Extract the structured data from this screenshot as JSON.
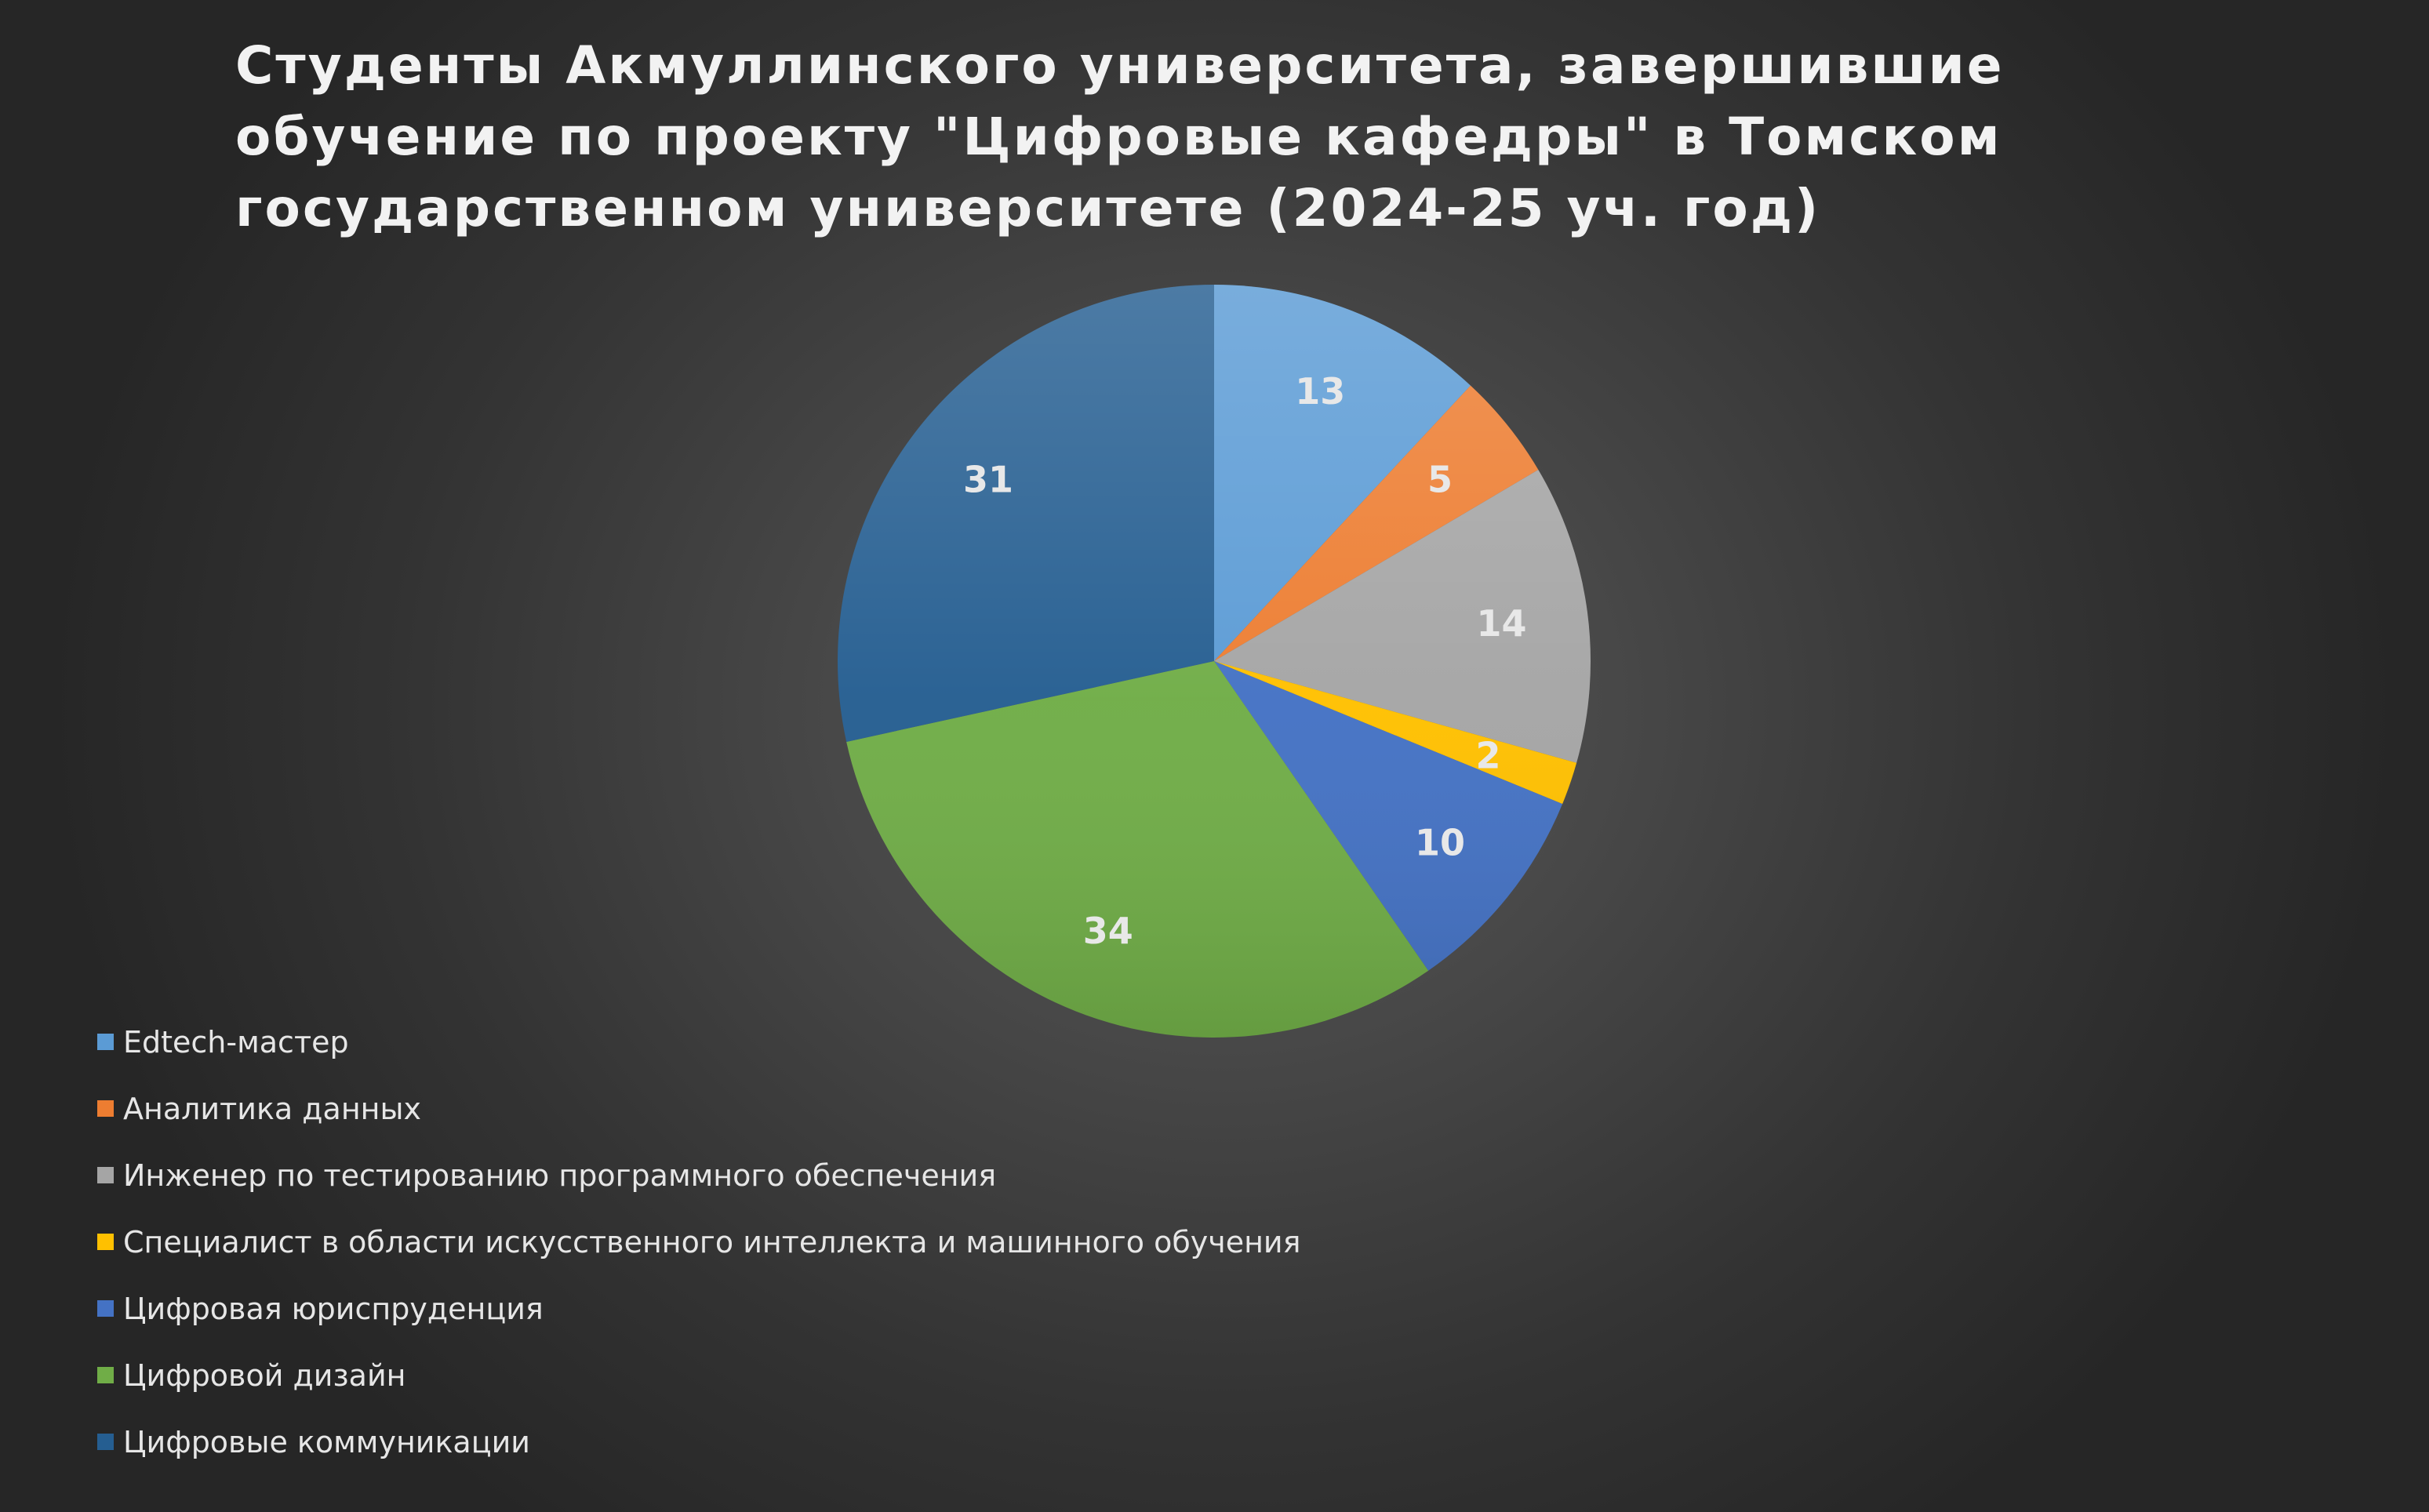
{
  "chart_data": {
    "type": "pie",
    "title": "Студенты Акмуллинского университета, завершившие обучение по проекту \"Цифровые кафедры\" в Томском государственном университете (2024-25 уч. год)",
    "title_lines": [
      "Студенты Акмуллинского университета, завершившие",
      "обучение по проекту \"Цифровые кафедры\" в Томском",
      "государственном университете (2024-25 уч. год)"
    ],
    "categories": [
      "Edtech-мастер",
      "Аналитика данных",
      "Инженер по тестированию программного обеспечения",
      "Специалист в области искусственного интеллекта и машинного обучения",
      "Цифровая юриспруденция",
      "Цифровой дизайн",
      "Цифровые коммуникации"
    ],
    "values": [
      13,
      5,
      14,
      2,
      10,
      34,
      31
    ],
    "data_labels": [
      "13",
      "5",
      "14",
      "2",
      "10",
      "34",
      "31"
    ],
    "colors": [
      "#5b9bd5",
      "#ed7d31",
      "#a5a5a5",
      "#ffc000",
      "#4472c4",
      "#70ad47",
      "#255e91"
    ],
    "start_angle_deg": 0,
    "direction": "clockwise",
    "legend_position": "bottom-left",
    "label_color": "#e8e8e8"
  }
}
